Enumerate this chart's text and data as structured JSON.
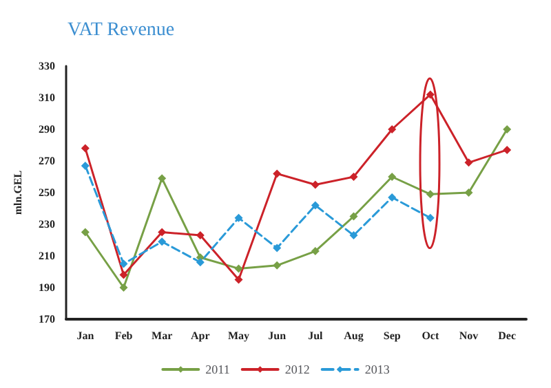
{
  "chart_data": {
    "type": "line",
    "title": "VAT Revenue",
    "ylabel": "mln.GEL",
    "categories": [
      "Jan",
      "Feb",
      "Mar",
      "Apr",
      "May",
      "Jun",
      "Jul",
      "Aug",
      "Sep",
      "Oct",
      "Nov",
      "Dec"
    ],
    "series": [
      {
        "name": "2011",
        "color": "#77a046",
        "values": [
          225,
          190,
          259,
          209,
          202,
          204,
          213,
          235,
          260,
          249,
          250,
          290
        ]
      },
      {
        "name": "2012",
        "color": "#cc2229",
        "values": [
          278,
          198,
          225,
          223,
          195,
          262,
          255,
          260,
          290,
          312,
          269,
          277
        ]
      },
      {
        "name": "2013",
        "color": "#2a9ad8",
        "line_style": "dashed",
        "values": [
          267,
          205,
          219,
          206,
          234,
          215,
          242,
          223,
          247,
          234,
          null,
          null
        ]
      }
    ],
    "ylim": [
      170,
      330
    ],
    "yticks": [
      170,
      190,
      210,
      230,
      250,
      270,
      290,
      310,
      330
    ],
    "grid": false,
    "legend": "bottom",
    "marker": "diamond",
    "line_style": "solid"
  }
}
